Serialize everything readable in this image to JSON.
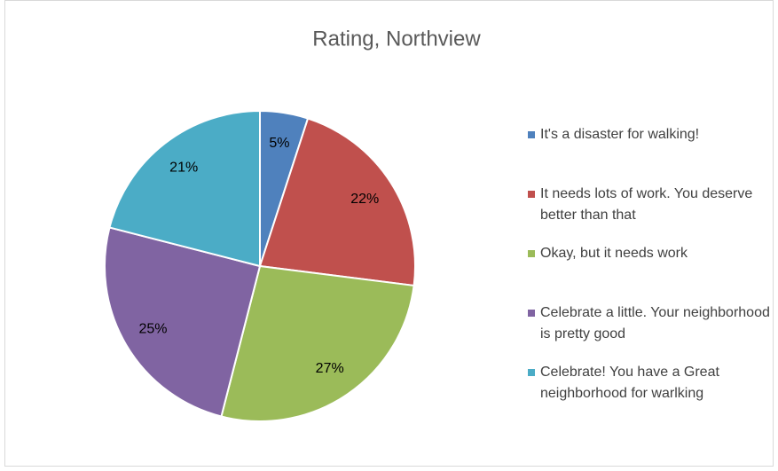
{
  "chart_data": {
    "type": "pie",
    "title": "Rating, Northview",
    "categories": [
      "It's a disaster for walking!",
      "It needs lots of work. You deserve better than that",
      "Okay, but it needs work",
      "Celebrate a little. Your neighborhood is pretty good",
      "Celebrate! You have a Great neighborhood for warlking"
    ],
    "values": [
      5,
      22,
      27,
      25,
      21
    ],
    "value_labels": [
      "5%",
      "22%",
      "27%",
      "25%",
      "21%"
    ],
    "colors": [
      "#4f81bd",
      "#c0504d",
      "#9bbb59",
      "#8064a2",
      "#4bacc6"
    ],
    "legend": "right"
  }
}
